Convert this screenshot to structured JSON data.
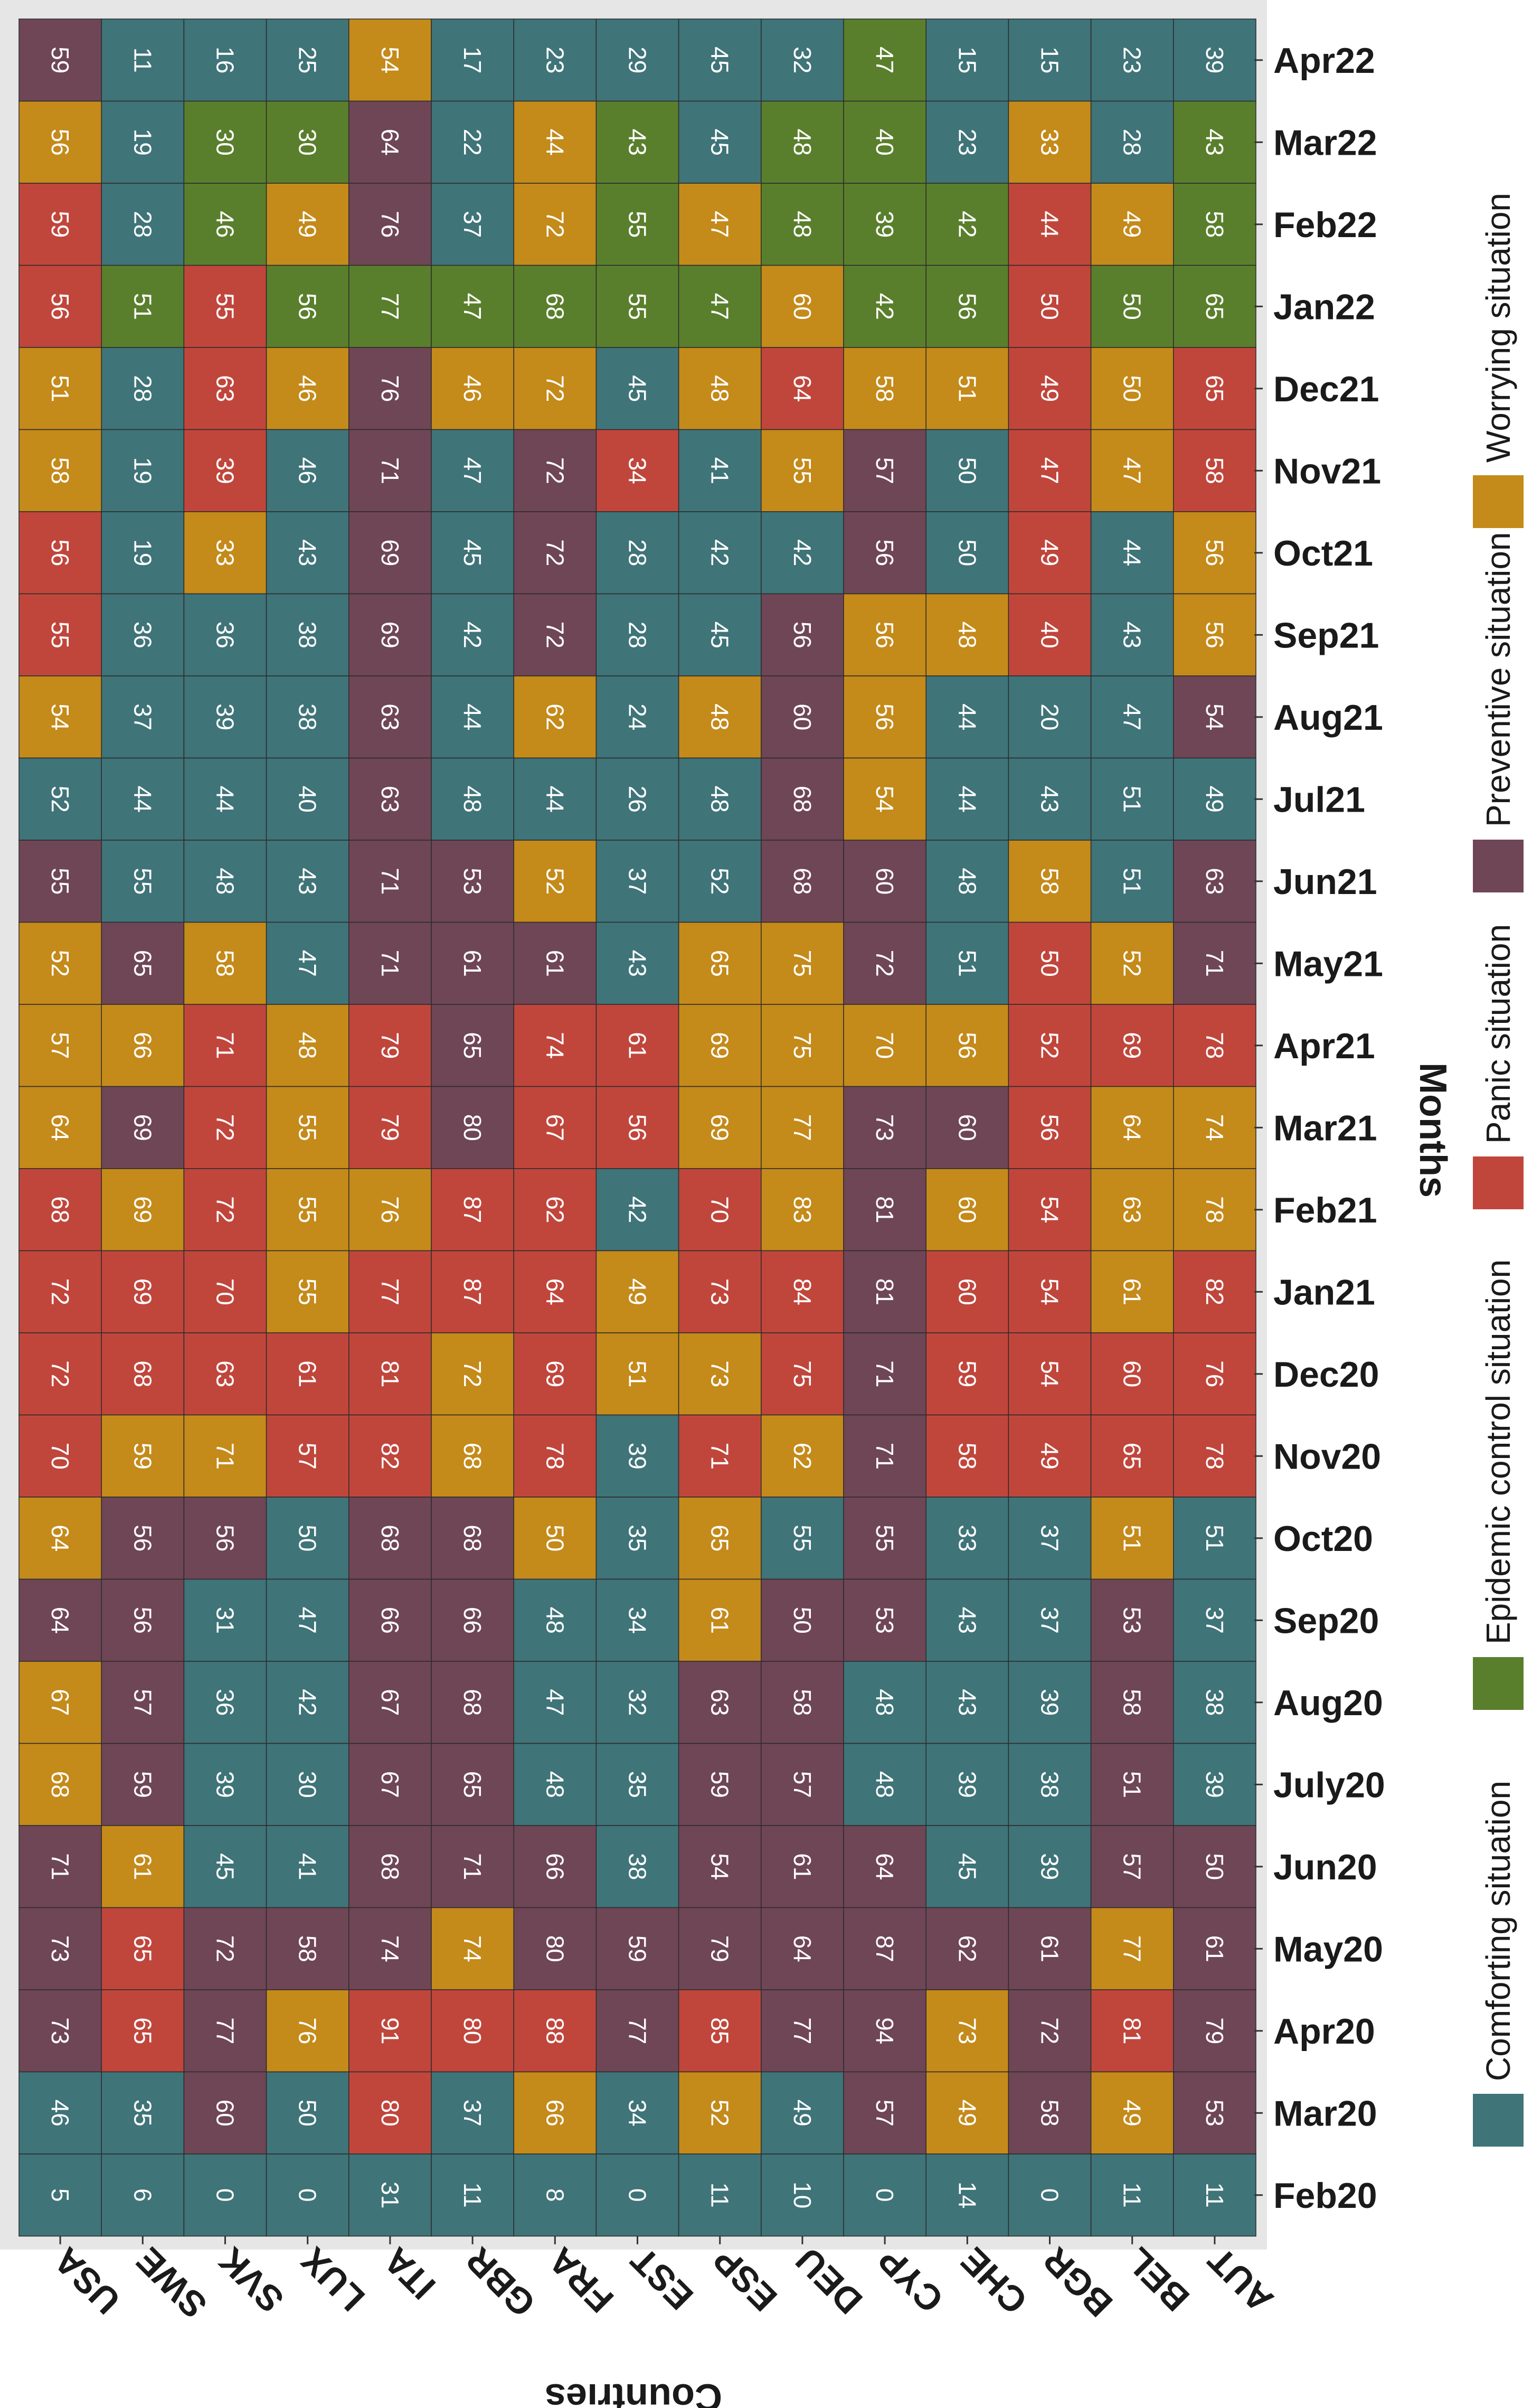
{
  "chart_data": {
    "type": "heatmap",
    "xlabel": "Countries",
    "ylabel": "Months",
    "countries": [
      "USA",
      "SWE",
      "SVK",
      "LUX",
      "ITA",
      "GBR",
      "FRA",
      "EST",
      "ESP",
      "DEU",
      "CYP",
      "CHE",
      "BGR",
      "BEL",
      "AUT"
    ],
    "months": [
      "Apr22",
      "Mar22",
      "Feb22",
      "Jan22",
      "Dec21",
      "Nov21",
      "Oct21",
      "Sep21",
      "Aug21",
      "Jul21",
      "Jun21",
      "May21",
      "Apr21",
      "Mar21",
      "Feb21",
      "Jan21",
      "Dec20",
      "Nov20",
      "Oct20",
      "Sep20",
      "Aug20",
      "July20",
      "Jun20",
      "May20",
      "Apr20",
      "Mar20",
      "Feb20"
    ],
    "legend": [
      {
        "key": "C",
        "label": "Comforting situation",
        "color": "#3f7479"
      },
      {
        "key": "E",
        "label": "Epidemic control situation",
        "color": "#5a7f2c"
      },
      {
        "key": "A",
        "label": "Panic situation",
        "color": "#c0463c"
      },
      {
        "key": "P",
        "label": "Preventive situation",
        "color": "#6f4656"
      },
      {
        "key": "W",
        "label": "Worrying situation",
        "color": "#c48a1a"
      }
    ],
    "values": [
      [
        59,
        11,
        16,
        25,
        54,
        17,
        23,
        29,
        45,
        32,
        47,
        15,
        15,
        23,
        39
      ],
      [
        56,
        19,
        30,
        30,
        64,
        22,
        44,
        43,
        45,
        48,
        40,
        23,
        33,
        28,
        43
      ],
      [
        59,
        28,
        46,
        49,
        76,
        37,
        72,
        55,
        47,
        48,
        39,
        42,
        44,
        49,
        58
      ],
      [
        56,
        51,
        55,
        56,
        77,
        47,
        68,
        55,
        47,
        60,
        42,
        56,
        50,
        50,
        65
      ],
      [
        51,
        28,
        63,
        46,
        76,
        46,
        72,
        45,
        48,
        64,
        58,
        51,
        49,
        50,
        65
      ],
      [
        58,
        19,
        39,
        46,
        71,
        47,
        72,
        34,
        41,
        55,
        57,
        50,
        47,
        47,
        58
      ],
      [
        56,
        19,
        33,
        43,
        69,
        45,
        72,
        28,
        42,
        42,
        56,
        50,
        49,
        44,
        56
      ],
      [
        55,
        36,
        36,
        38,
        69,
        42,
        72,
        28,
        45,
        56,
        56,
        48,
        40,
        43,
        56
      ],
      [
        54,
        37,
        39,
        38,
        63,
        44,
        62,
        24,
        48,
        60,
        56,
        44,
        20,
        47,
        54
      ],
      [
        52,
        44,
        44,
        40,
        63,
        48,
        44,
        26,
        48,
        68,
        54,
        44,
        43,
        51,
        49
      ],
      [
        55,
        55,
        48,
        43,
        71,
        53,
        52,
        37,
        52,
        68,
        60,
        48,
        58,
        51,
        63
      ],
      [
        52,
        65,
        58,
        47,
        71,
        61,
        61,
        43,
        65,
        75,
        72,
        51,
        50,
        52,
        71
      ],
      [
        57,
        66,
        71,
        48,
        79,
        65,
        74,
        61,
        69,
        75,
        70,
        56,
        52,
        69,
        78
      ],
      [
        64,
        69,
        72,
        55,
        79,
        80,
        67,
        56,
        69,
        77,
        73,
        60,
        56,
        64,
        74
      ],
      [
        68,
        69,
        72,
        55,
        76,
        87,
        62,
        42,
        70,
        83,
        81,
        60,
        54,
        63,
        78
      ],
      [
        72,
        69,
        70,
        55,
        77,
        87,
        64,
        49,
        73,
        84,
        81,
        60,
        54,
        61,
        82
      ],
      [
        72,
        68,
        63,
        61,
        81,
        72,
        69,
        51,
        73,
        75,
        71,
        59,
        54,
        60,
        76
      ],
      [
        70,
        59,
        71,
        57,
        82,
        68,
        78,
        39,
        71,
        62,
        71,
        58,
        49,
        65,
        78
      ],
      [
        64,
        56,
        56,
        50,
        68,
        68,
        50,
        35,
        65,
        55,
        55,
        33,
        37,
        51,
        51
      ],
      [
        64,
        56,
        31,
        47,
        66,
        66,
        48,
        34,
        61,
        50,
        53,
        43,
        37,
        53,
        37
      ],
      [
        67,
        57,
        36,
        42,
        67,
        68,
        47,
        32,
        63,
        58,
        48,
        43,
        39,
        58,
        38
      ],
      [
        68,
        59,
        39,
        30,
        67,
        65,
        48,
        35,
        59,
        57,
        48,
        39,
        38,
        51,
        39
      ],
      [
        71,
        61,
        45,
        41,
        68,
        71,
        66,
        38,
        54,
        61,
        64,
        45,
        39,
        57,
        50
      ],
      [
        73,
        65,
        72,
        58,
        74,
        74,
        80,
        59,
        79,
        64,
        87,
        62,
        61,
        77,
        61
      ],
      [
        73,
        65,
        77,
        76,
        91,
        80,
        88,
        77,
        85,
        77,
        94,
        73,
        72,
        81,
        79
      ],
      [
        46,
        35,
        60,
        50,
        80,
        37,
        66,
        34,
        52,
        49,
        57,
        49,
        58,
        49,
        53
      ],
      [
        5,
        6,
        0,
        0,
        31,
        11,
        8,
        0,
        11,
        10,
        0,
        14,
        0,
        11,
        11
      ]
    ],
    "categories": [
      [
        "P",
        "C",
        "C",
        "C",
        "W",
        "C",
        "C",
        "C",
        "C",
        "C",
        "E",
        "C",
        "C",
        "C",
        "C"
      ],
      [
        "W",
        "C",
        "E",
        "E",
        "P",
        "C",
        "W",
        "E",
        "C",
        "E",
        "E",
        "C",
        "W",
        "C",
        "E"
      ],
      [
        "A",
        "C",
        "E",
        "W",
        "P",
        "C",
        "W",
        "E",
        "W",
        "E",
        "E",
        "E",
        "A",
        "W",
        "E"
      ],
      [
        "A",
        "E",
        "A",
        "E",
        "E",
        "E",
        "E",
        "E",
        "E",
        "W",
        "E",
        "E",
        "A",
        "E",
        "E"
      ],
      [
        "W",
        "C",
        "A",
        "W",
        "P",
        "W",
        "W",
        "C",
        "W",
        "A",
        "W",
        "W",
        "A",
        "W",
        "A"
      ],
      [
        "W",
        "C",
        "A",
        "C",
        "P",
        "C",
        "P",
        "A",
        "C",
        "W",
        "P",
        "C",
        "A",
        "W",
        "A"
      ],
      [
        "A",
        "C",
        "W",
        "C",
        "P",
        "C",
        "P",
        "C",
        "C",
        "C",
        "P",
        "C",
        "A",
        "C",
        "W"
      ],
      [
        "A",
        "C",
        "C",
        "C",
        "P",
        "C",
        "P",
        "C",
        "C",
        "P",
        "W",
        "W",
        "A",
        "C",
        "W"
      ],
      [
        "W",
        "C",
        "C",
        "C",
        "P",
        "C",
        "W",
        "C",
        "W",
        "P",
        "W",
        "C",
        "C",
        "C",
        "P"
      ],
      [
        "C",
        "C",
        "C",
        "C",
        "P",
        "C",
        "C",
        "C",
        "C",
        "P",
        "W",
        "C",
        "C",
        "C",
        "C"
      ],
      [
        "P",
        "C",
        "C",
        "C",
        "P",
        "P",
        "W",
        "C",
        "C",
        "P",
        "P",
        "C",
        "W",
        "C",
        "P"
      ],
      [
        "W",
        "P",
        "W",
        "C",
        "P",
        "P",
        "P",
        "C",
        "W",
        "W",
        "P",
        "C",
        "A",
        "W",
        "P"
      ],
      [
        "W",
        "W",
        "A",
        "W",
        "A",
        "P",
        "A",
        "A",
        "W",
        "W",
        "W",
        "W",
        "A",
        "A",
        "A"
      ],
      [
        "W",
        "P",
        "A",
        "W",
        "A",
        "P",
        "A",
        "A",
        "W",
        "W",
        "P",
        "P",
        "A",
        "W",
        "W"
      ],
      [
        "A",
        "W",
        "A",
        "W",
        "W",
        "A",
        "A",
        "C",
        "A",
        "W",
        "P",
        "W",
        "A",
        "W",
        "W"
      ],
      [
        "A",
        "A",
        "A",
        "W",
        "A",
        "A",
        "A",
        "W",
        "A",
        "A",
        "P",
        "A",
        "A",
        "W",
        "A"
      ],
      [
        "A",
        "A",
        "A",
        "A",
        "A",
        "W",
        "A",
        "W",
        "W",
        "A",
        "P",
        "A",
        "A",
        "A",
        "A"
      ],
      [
        "A",
        "W",
        "W",
        "A",
        "A",
        "W",
        "A",
        "C",
        "A",
        "W",
        "P",
        "A",
        "A",
        "A",
        "A"
      ],
      [
        "W",
        "P",
        "P",
        "C",
        "P",
        "P",
        "W",
        "C",
        "W",
        "C",
        "P",
        "C",
        "C",
        "W",
        "C"
      ],
      [
        "P",
        "P",
        "C",
        "C",
        "P",
        "P",
        "C",
        "C",
        "W",
        "P",
        "P",
        "C",
        "C",
        "P",
        "C"
      ],
      [
        "W",
        "P",
        "C",
        "C",
        "P",
        "P",
        "C",
        "C",
        "P",
        "P",
        "C",
        "C",
        "C",
        "P",
        "C"
      ],
      [
        "W",
        "P",
        "C",
        "C",
        "P",
        "P",
        "C",
        "C",
        "P",
        "P",
        "C",
        "C",
        "C",
        "P",
        "C"
      ],
      [
        "P",
        "W",
        "C",
        "C",
        "P",
        "P",
        "P",
        "C",
        "P",
        "P",
        "P",
        "C",
        "C",
        "P",
        "P"
      ],
      [
        "P",
        "A",
        "P",
        "P",
        "P",
        "W",
        "P",
        "P",
        "P",
        "P",
        "P",
        "P",
        "P",
        "W",
        "P"
      ],
      [
        "P",
        "A",
        "P",
        "W",
        "A",
        "A",
        "A",
        "P",
        "A",
        "P",
        "P",
        "W",
        "P",
        "A",
        "P"
      ],
      [
        "C",
        "C",
        "P",
        "C",
        "A",
        "C",
        "W",
        "C",
        "W",
        "C",
        "P",
        "W",
        "P",
        "W",
        "P"
      ],
      [
        "C",
        "C",
        "C",
        "C",
        "C",
        "C",
        "C",
        "C",
        "C",
        "C",
        "C",
        "C",
        "C",
        "C",
        "C"
      ]
    ],
    "grid": false
  }
}
